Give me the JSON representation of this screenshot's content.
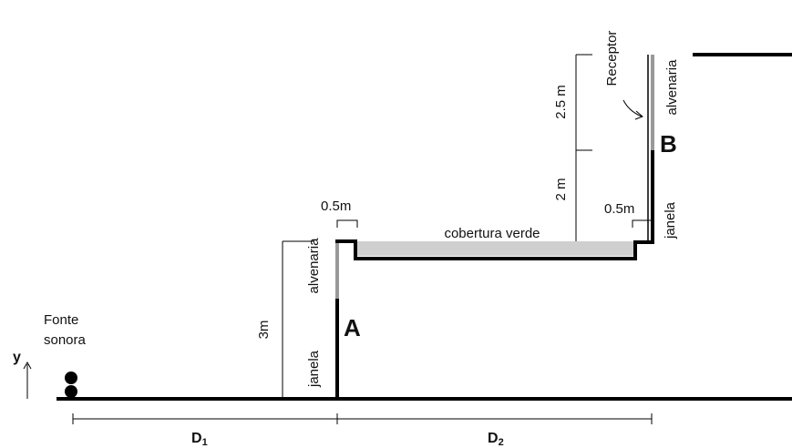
{
  "source": {
    "line1": "Fonte",
    "line2": "sonora"
  },
  "axis": "y",
  "wall_a": {
    "height": "3m",
    "lower": "janela",
    "upper": "alvenaria",
    "label": "A",
    "offset": "0.5m"
  },
  "roof": "cobertura verde",
  "wall_b": {
    "lower_height": "2 m",
    "upper_height": "2.5 m",
    "offset": "0.5m",
    "lower": "janela",
    "upper": "alvenaria",
    "label": "B",
    "receiver": "Receptor"
  },
  "distances": {
    "d1": {
      "main": "D",
      "sub": "1"
    },
    "d2": {
      "main": "D",
      "sub": "2"
    }
  }
}
